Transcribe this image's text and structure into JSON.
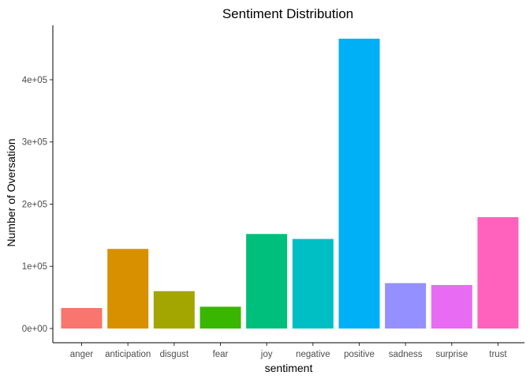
{
  "chart_data": {
    "type": "bar",
    "title": "Sentiment Distribution",
    "xlabel": "sentiment",
    "ylabel": "Number of Oversation",
    "categories": [
      "anger",
      "anticipation",
      "disgust",
      "fear",
      "joy",
      "negative",
      "positive",
      "sadness",
      "surprise",
      "trust"
    ],
    "values": [
      33000,
      128000,
      60000,
      35000,
      152000,
      144000,
      466000,
      73000,
      70000,
      179000
    ],
    "colors": [
      "#F8766D",
      "#D89000",
      "#A3A500",
      "#39B600",
      "#00BF7D",
      "#00BFC4",
      "#00B0F6",
      "#9590FF",
      "#E76BF3",
      "#FF62BC"
    ],
    "yticks": [
      0,
      100000,
      200000,
      300000,
      400000
    ],
    "ytick_labels": [
      "0e+00",
      "1e+05",
      "2e+05",
      "3e+05",
      "4e+05"
    ],
    "ylim": [
      0,
      466000
    ],
    "grid": false,
    "legend": "none"
  }
}
